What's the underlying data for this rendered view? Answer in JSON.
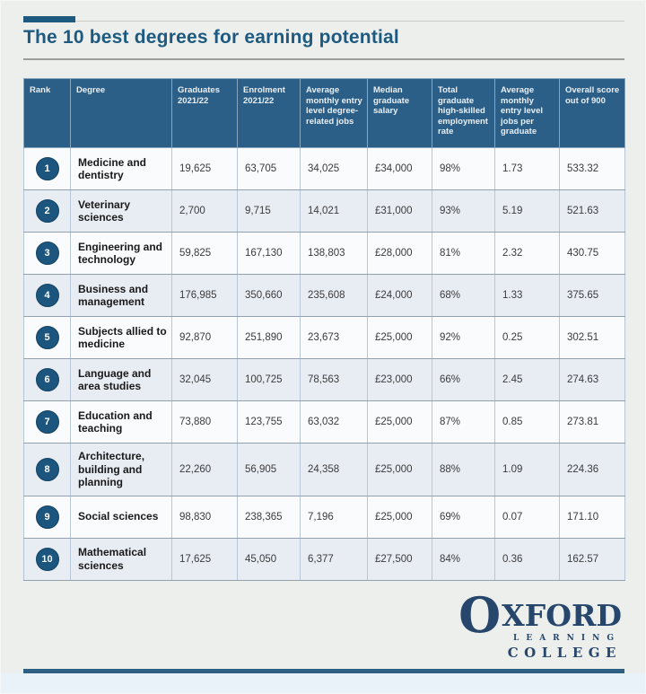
{
  "page": {
    "title": "The 10 best degrees for earning potential"
  },
  "chart_data": {
    "type": "table",
    "title": "The 10 best degrees for earning potential",
    "columns": [
      "Rank",
      "Degree",
      "Graduates 2021/22",
      "Enrolment 2021/22",
      "Average monthly entry level degree-related jobs",
      "Median graduate salary",
      "Total graduate high-skilled employment rate",
      "Average monthly entry level jobs per graduate",
      "Overall score out of 900"
    ],
    "rows": [
      [
        "1",
        "Medicine and dentistry",
        "19,625",
        "63,705",
        "34,025",
        "£34,000",
        "98%",
        "1.73",
        "533.32"
      ],
      [
        "2",
        "Veterinary sciences",
        "2,700",
        "9,715",
        "14,021",
        "£31,000",
        "93%",
        "5.19",
        "521.63"
      ],
      [
        "3",
        "Engineering and technology",
        "59,825",
        "167,130",
        "138,803",
        "£28,000",
        "81%",
        "2.32",
        "430.75"
      ],
      [
        "4",
        "Business and management",
        "176,985",
        "350,660",
        "235,608",
        "£24,000",
        "68%",
        "1.33",
        "375.65"
      ],
      [
        "5",
        "Subjects allied to medicine",
        "92,870",
        "251,890",
        "23,673",
        "£25,000",
        "92%",
        "0.25",
        "302.51"
      ],
      [
        "6",
        "Language and area studies",
        "32,045",
        "100,725",
        "78,563",
        "£23,000",
        "66%",
        "2.45",
        "274.63"
      ],
      [
        "7",
        "Education and teaching",
        "73,880",
        "123,755",
        "63,032",
        "£25,000",
        "87%",
        "0.85",
        "273.81"
      ],
      [
        "8",
        "Architecture, building and planning",
        "22,260",
        "56,905",
        "24,358",
        "£25,000",
        "88%",
        "1.09",
        "224.36"
      ],
      [
        "9",
        "Social sciences",
        "98,830",
        "238,365",
        "7,196",
        "£25,000",
        "69%",
        "0.07",
        "171.10"
      ],
      [
        "10",
        "Mathematical sciences",
        "17,625",
        "45,050",
        "6,377",
        "£27,500",
        "84%",
        "0.36",
        "162.57"
      ]
    ]
  },
  "logo": {
    "initial": "O",
    "rest": "XFORD",
    "line2": "LEARNING",
    "line3": "COLLEGE"
  },
  "colors": {
    "accent": "#1e5a80",
    "header_bg": "#2c5f88",
    "badge": "#1c557d",
    "row_alt": "#e8edf4",
    "logo": "#26466b",
    "rule": "#2d6082"
  }
}
